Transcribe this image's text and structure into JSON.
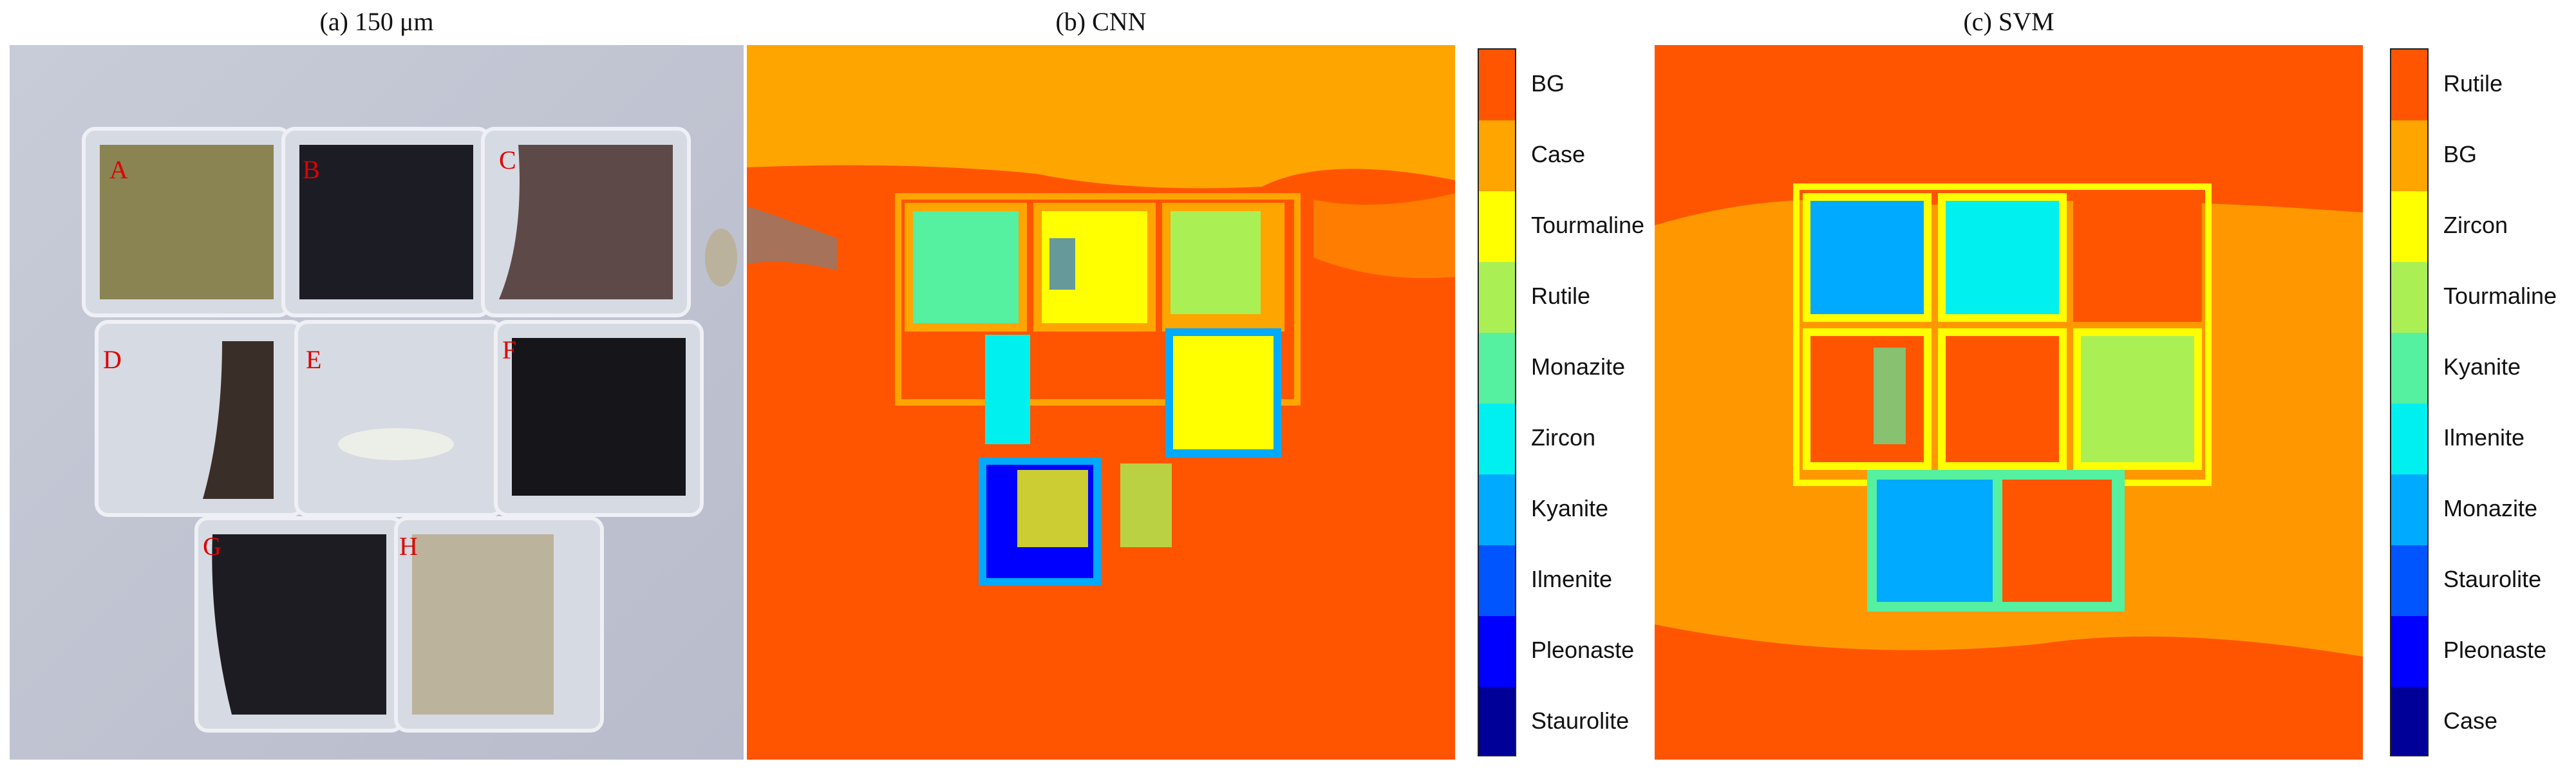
{
  "panels": {
    "a": {
      "title": "(a) 150 μm",
      "samples": [
        "A",
        "B",
        "C",
        "D",
        "E",
        "F",
        "G",
        "H"
      ]
    },
    "b": {
      "title": "(b) CNN",
      "classes": [
        "BG",
        "Case",
        "Tourmaline",
        "Rutile",
        "Monazite",
        "Zircon",
        "Kyanite",
        "Ilmenite",
        "Pleonaste",
        "Staurolite"
      ]
    },
    "c": {
      "title": "(c) SVM",
      "classes": [
        "Rutile",
        "BG",
        "Zircon",
        "Tourmaline",
        "Kyanite",
        "Ilmenite",
        "Monazite",
        "Staurolite",
        "Pleonaste",
        "Case"
      ]
    }
  },
  "colormap": [
    "#ff5500",
    "#ffa500",
    "#ffff00",
    "#aaf055",
    "#55f0a0",
    "#00f0f0",
    "#00aaff",
    "#0055ff",
    "#0000ff",
    "#000099"
  ]
}
